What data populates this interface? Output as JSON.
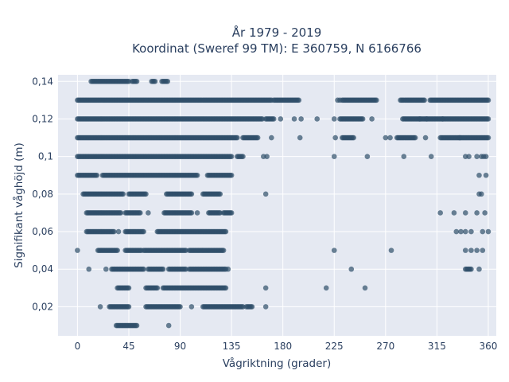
{
  "chart_data": {
    "type": "scatter",
    "title": "År 1979 - 2019",
    "subtitle": "Koordinat (Sweref 99 TM): E 360759, N 6166766",
    "xlabel": "Vågriktning (grader)",
    "ylabel": "Signifikant våghöjd (m)",
    "xlim": [
      -17,
      367
    ],
    "ylim": [
      0.0045,
      0.1435
    ],
    "x_ticks": [
      0,
      45,
      90,
      135,
      180,
      225,
      270,
      315,
      360
    ],
    "y_ticks": [
      "0,02",
      "0,04",
      "0,06",
      "0,08",
      "0,1",
      "0,12",
      "0,14"
    ],
    "y_tick_values": [
      0.02,
      0.04,
      0.06,
      0.08,
      0.1,
      0.12,
      0.14
    ],
    "grid": true,
    "marker_color": "#2f4f6a",
    "plot_background": "#e5e9f2",
    "series": [
      {
        "segments": [
          {
            "y": 0.14,
            "x_ranges": [
              [
                12,
                45
              ],
              [
                48,
                52
              ],
              [
                65,
                68
              ],
              [
                74,
                79
              ]
            ]
          },
          {
            "y": 0.13,
            "x_ranges": [
              [
                0,
                170
              ],
              [
                172,
                194
              ],
              [
                232,
                262
              ],
              [
                283,
                304
              ],
              [
                309,
                360
              ]
            ],
            "points": [
              228,
              230
            ]
          },
          {
            "y": 0.12,
            "x_ranges": [
              [
                0,
                162
              ],
              [
                165,
                172
              ],
              [
                230,
                250
              ],
              [
                285,
                360
              ]
            ],
            "points": [
              178,
              190,
              196,
              210,
              225,
              258,
              300,
              306,
              320
            ]
          },
          {
            "y": 0.11,
            "x_ranges": [
              [
                0,
                140
              ],
              [
                145,
                158
              ],
              [
                232,
                242
              ],
              [
                280,
                296
              ],
              [
                318,
                360
              ]
            ],
            "points": [
              170,
              195,
              226,
              270,
              274,
              305,
              335
            ]
          },
          {
            "y": 0.1,
            "x_ranges": [
              [
                0,
                135
              ],
              [
                140,
                145
              ]
            ],
            "points": [
              163,
              166,
              225,
              254,
              286,
              310,
              340,
              343,
              350,
              354,
              356,
              358
            ]
          },
          {
            "y": 0.09,
            "x_ranges": [
              [
                0,
                17
              ],
              [
                22,
                105
              ],
              [
                114,
                135
              ]
            ],
            "points": [
              352,
              358
            ]
          },
          {
            "y": 0.08,
            "x_ranges": [
              [
                5,
                40
              ],
              [
                45,
                60
              ],
              [
                78,
                100
              ],
              [
                110,
                125
              ]
            ],
            "points": [
              165,
              352,
              354
            ]
          },
          {
            "y": 0.07,
            "x_ranges": [
              [
                8,
                38
              ],
              [
                42,
                55
              ],
              [
                76,
                100
              ],
              [
                115,
                125
              ],
              [
                128,
                135
              ]
            ],
            "points": [
              62,
              105,
              318,
              330,
              340,
              350,
              357
            ]
          },
          {
            "y": 0.06,
            "x_ranges": [
              [
                8,
                32
              ],
              [
                42,
                58
              ],
              [
                70,
                130
              ]
            ],
            "points": [
              36,
              332,
              336,
              340,
              345,
              355,
              360
            ]
          },
          {
            "y": 0.05,
            "x_ranges": [
              [
                18,
                35
              ],
              [
                42,
                56
              ],
              [
                58,
                95
              ],
              [
                98,
                128
              ]
            ],
            "points": [
              0,
              225,
              275,
              340,
              345,
              350,
              355
            ]
          },
          {
            "y": 0.04,
            "x_ranges": [
              [
                30,
                58
              ],
              [
                62,
                75
              ],
              [
                80,
                95
              ],
              [
                98,
                130
              ],
              [
                340,
                345
              ]
            ],
            "points": [
              10,
              25,
              132,
              240,
              352
            ]
          },
          {
            "y": 0.03,
            "x_ranges": [
              [
                35,
                45
              ],
              [
                60,
                70
              ],
              [
                75,
                130
              ]
            ],
            "points": [
              165,
              218,
              252
            ]
          },
          {
            "y": 0.02,
            "x_ranges": [
              [
                28,
                45
              ],
              [
                60,
                90
              ],
              [
                110,
                145
              ],
              [
                148,
                153
              ]
            ],
            "points": [
              20,
              100,
              165
            ]
          },
          {
            "y": 0.01,
            "x_ranges": [
              [
                34,
                52
              ]
            ],
            "points": [
              80
            ]
          }
        ]
      }
    ]
  }
}
